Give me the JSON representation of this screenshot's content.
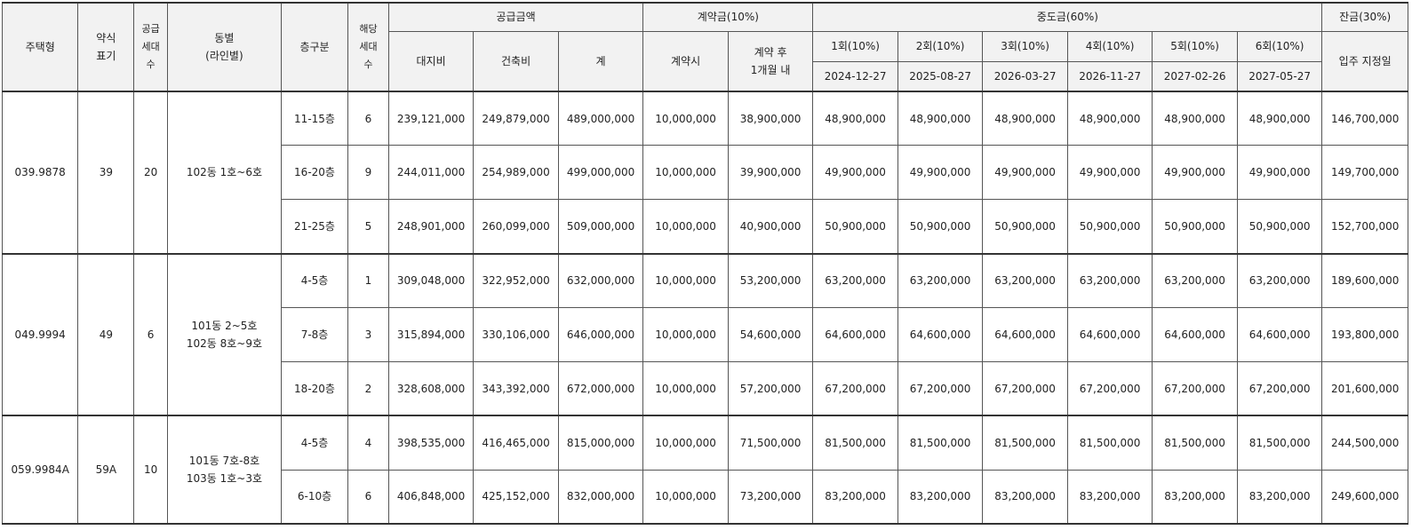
{
  "header": {
    "type": "주택형",
    "short": "약식\n표기",
    "supply_units": "공급\n세대\n수",
    "building": "동별\n(라인별)",
    "floor": "층구분",
    "units": "해당\n세대\n수",
    "supply_amount": "공급금액",
    "land": "대지비",
    "construction": "건축비",
    "total": "계",
    "deposit": "계약금(10%)",
    "deposit_at": "계약시",
    "deposit_after": "계약 후\n1개월 내",
    "interim": "중도금(60%)",
    "interim_rounds": [
      {
        "label": "1회(10%)",
        "date": "2024-12-27"
      },
      {
        "label": "2회(10%)",
        "date": "2025-08-27"
      },
      {
        "label": "3회(10%)",
        "date": "2026-03-27"
      },
      {
        "label": "4회(10%)",
        "date": "2026-11-27"
      },
      {
        "label": "5회(10%)",
        "date": "2027-02-26"
      },
      {
        "label": "6회(10%)",
        "date": "2027-05-27"
      }
    ],
    "balance": "잔금(30%)",
    "balance_date": "입주 지정일"
  },
  "groups": [
    {
      "type": "039.9878",
      "short": "39",
      "supply_units": "20",
      "building": "102동  1호~6호",
      "rows": [
        {
          "floor": "11-15층",
          "units": "6",
          "land": "239,121,000",
          "construction": "249,879,000",
          "total": "489,000,000",
          "deposit_at": "10,000,000",
          "deposit_after": "38,900,000",
          "interim": [
            "48,900,000",
            "48,900,000",
            "48,900,000",
            "48,900,000",
            "48,900,000",
            "48,900,000"
          ],
          "balance": "146,700,000"
        },
        {
          "floor": "16-20층",
          "units": "9",
          "land": "244,011,000",
          "construction": "254,989,000",
          "total": "499,000,000",
          "deposit_at": "10,000,000",
          "deposit_after": "39,900,000",
          "interim": [
            "49,900,000",
            "49,900,000",
            "49,900,000",
            "49,900,000",
            "49,900,000",
            "49,900,000"
          ],
          "balance": "149,700,000"
        },
        {
          "floor": "21-25층",
          "units": "5",
          "land": "248,901,000",
          "construction": "260,099,000",
          "total": "509,000,000",
          "deposit_at": "10,000,000",
          "deposit_after": "40,900,000",
          "interim": [
            "50,900,000",
            "50,900,000",
            "50,900,000",
            "50,900,000",
            "50,900,000",
            "50,900,000"
          ],
          "balance": "152,700,000"
        }
      ]
    },
    {
      "type": "049.9994",
      "short": "49",
      "supply_units": "6",
      "building": "101동  2~5호\n102동  8호~9호",
      "rows": [
        {
          "floor": "4-5층",
          "units": "1",
          "land": "309,048,000",
          "construction": "322,952,000",
          "total": "632,000,000",
          "deposit_at": "10,000,000",
          "deposit_after": "53,200,000",
          "interim": [
            "63,200,000",
            "63,200,000",
            "63,200,000",
            "63,200,000",
            "63,200,000",
            "63,200,000"
          ],
          "balance": "189,600,000"
        },
        {
          "floor": "7-8층",
          "units": "3",
          "land": "315,894,000",
          "construction": "330,106,000",
          "total": "646,000,000",
          "deposit_at": "10,000,000",
          "deposit_after": "54,600,000",
          "interim": [
            "64,600,000",
            "64,600,000",
            "64,600,000",
            "64,600,000",
            "64,600,000",
            "64,600,000"
          ],
          "balance": "193,800,000"
        },
        {
          "floor": "18-20층",
          "units": "2",
          "land": "328,608,000",
          "construction": "343,392,000",
          "total": "672,000,000",
          "deposit_at": "10,000,000",
          "deposit_after": "57,200,000",
          "interim": [
            "67,200,000",
            "67,200,000",
            "67,200,000",
            "67,200,000",
            "67,200,000",
            "67,200,000"
          ],
          "balance": "201,600,000"
        }
      ]
    },
    {
      "type": "059.9984A",
      "short": "59A",
      "supply_units": "10",
      "building": "101동  7호-8호\n103동  1호~3호",
      "rows": [
        {
          "floor": "4-5층",
          "units": "4",
          "land": "398,535,000",
          "construction": "416,465,000",
          "total": "815,000,000",
          "deposit_at": "10,000,000",
          "deposit_after": "71,500,000",
          "interim": [
            "81,500,000",
            "81,500,000",
            "81,500,000",
            "81,500,000",
            "81,500,000",
            "81,500,000"
          ],
          "balance": "244,500,000"
        },
        {
          "floor": "6-10층",
          "units": "6",
          "land": "406,848,000",
          "construction": "425,152,000",
          "total": "832,000,000",
          "deposit_at": "10,000,000",
          "deposit_after": "73,200,000",
          "interim": [
            "83,200,000",
            "83,200,000",
            "83,200,000",
            "83,200,000",
            "83,200,000",
            "83,200,000"
          ],
          "balance": "249,600,000"
        }
      ]
    }
  ]
}
